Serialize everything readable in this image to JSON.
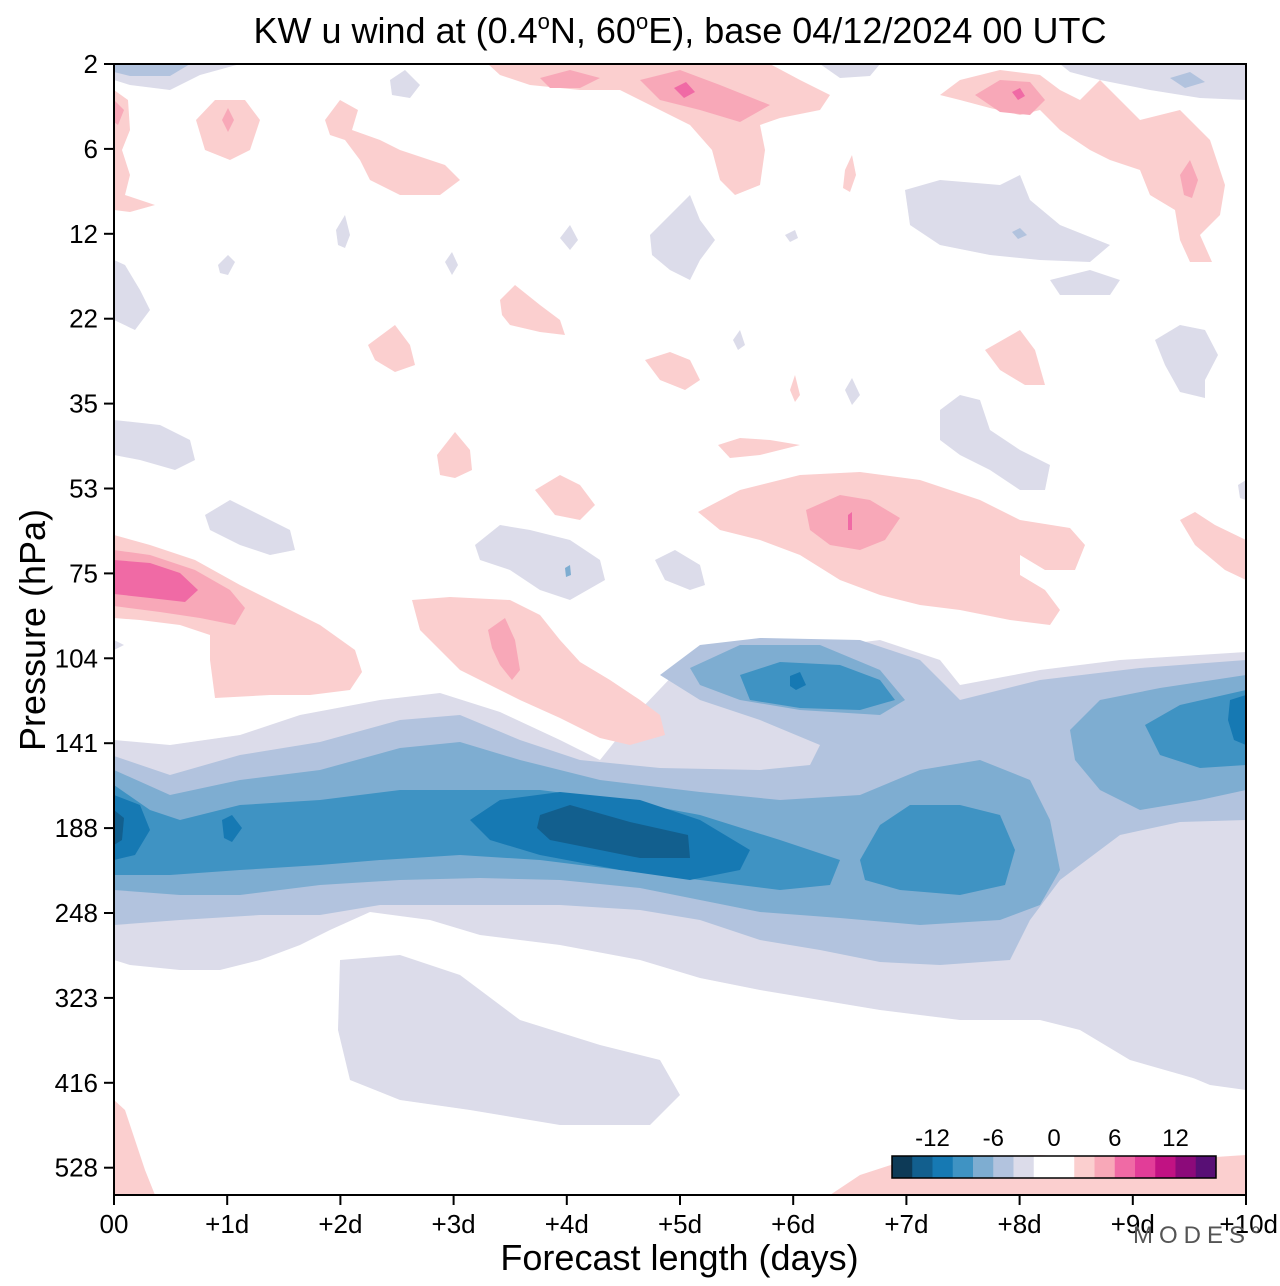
{
  "title": {
    "parts": [
      "KW u wind at (0.4",
      "o",
      "N, 60",
      "o",
      "E),  base 04/12/2024  00 UTC"
    ]
  },
  "brand": "MODES°",
  "chart_data": {
    "type": "heatmap",
    "title": "KW u wind at (0.4°N, 60°E),  base 04/12/2024  00 UTC",
    "xlabel": "Forecast length (days)",
    "ylabel": "Pressure (hPa)",
    "x_ticks": [
      "00",
      "+1d",
      "+2d",
      "+3d",
      "+4d",
      "+5d",
      "+6d",
      "+7d",
      "+8d",
      "+9d",
      "+10d"
    ],
    "x_range_days": [
      0,
      10
    ],
    "y_ticks": [
      "2",
      "6",
      "12",
      "22",
      "35",
      "53",
      "75",
      "104",
      "141",
      "188",
      "248",
      "323",
      "416",
      "528"
    ],
    "y_range_hPa": [
      2,
      600
    ],
    "y_direction": "pressure increasing downward",
    "colorbar": {
      "tick_labels": [
        "-12",
        "-6",
        "0",
        "6",
        "12"
      ],
      "levels": [
        -16,
        -14,
        -12,
        -10,
        -8,
        -6,
        -4,
        -2,
        0,
        2,
        4,
        6,
        8,
        10,
        12,
        14,
        16
      ],
      "colors": [
        "#0d3a57",
        "#125f8e",
        "#1679b3",
        "#3f93c3",
        "#7eadd1",
        "#b2c3de",
        "#dcdcea",
        "#ffffff",
        "#ffffff",
        "#fbcfcf",
        "#f8a8b8",
        "#f06aa5",
        "#e23d98",
        "#c11283",
        "#8c0a7a",
        "#580f75"
      ]
    },
    "features": [
      {
        "kind": "easterly jet core",
        "center_day": 4.5,
        "center_hPa": 188,
        "min_value": -16
      },
      {
        "kind": "easterly",
        "center_day": 0.1,
        "center_hPa": 188,
        "min_value": -12
      },
      {
        "kind": "easterly",
        "center_day": 7.5,
        "center_hPa": 188,
        "min_value": -10
      },
      {
        "kind": "easterly",
        "center_day": 10.0,
        "center_hPa": 141,
        "min_value": -12
      },
      {
        "kind": "easterly",
        "center_day": 6.0,
        "center_hPa": 110,
        "min_value": -8
      },
      {
        "kind": "westerly",
        "center_day": 0.5,
        "center_hPa": 78,
        "max_value": 8
      },
      {
        "kind": "westerly",
        "center_day": 3.5,
        "center_hPa": 104,
        "max_value": 4
      },
      {
        "kind": "westerly",
        "center_day": 6.5,
        "center_hPa": 62,
        "max_value": 4
      },
      {
        "kind": "westerly",
        "center_day": 5.0,
        "center_hPa": 3,
        "max_value": 6
      },
      {
        "kind": "westerly",
        "center_day": 8.0,
        "center_hPa": 3,
        "max_value": 6
      }
    ]
  }
}
